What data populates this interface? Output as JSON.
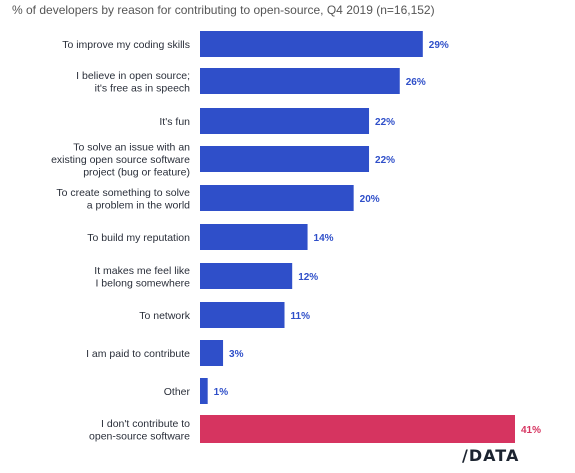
{
  "title": "% of developers by reason for contributing to open-source, Q4 2019 (n=16,152)",
  "logo": "/DATA",
  "colors": {
    "default_bar": "#2f4fc9",
    "highlight_bar": "#d63460",
    "value_default": "#2f4fc9",
    "value_highlight": "#d63460"
  },
  "chart_data": {
    "type": "bar",
    "orientation": "horizontal",
    "unit": "%",
    "categories": [
      [
        "To improve my coding skills"
      ],
      [
        "I believe in open source;",
        "it's free as in speech"
      ],
      [
        "It's fun"
      ],
      [
        "To solve an issue with an",
        "existing open source software",
        "project (bug or feature)"
      ],
      [
        "To create something to solve",
        "a problem in the world"
      ],
      [
        "To build my reputation"
      ],
      [
        "It makes me feel like",
        "I belong somewhere"
      ],
      [
        "To network"
      ],
      [
        "I am paid to contribute"
      ],
      [
        "Other"
      ],
      [
        "I don't contribute to",
        "open-source software"
      ]
    ],
    "values": [
      29,
      26,
      22,
      22,
      20,
      14,
      12,
      11,
      3,
      1,
      41
    ],
    "value_labels": [
      "29%",
      "26%",
      "22%",
      "22%",
      "20%",
      "14%",
      "12%",
      "11%",
      "3%",
      "1%",
      "41%"
    ],
    "highlight_index": 10,
    "xlim": [
      0,
      41
    ],
    "grid": false,
    "legend": "none"
  }
}
